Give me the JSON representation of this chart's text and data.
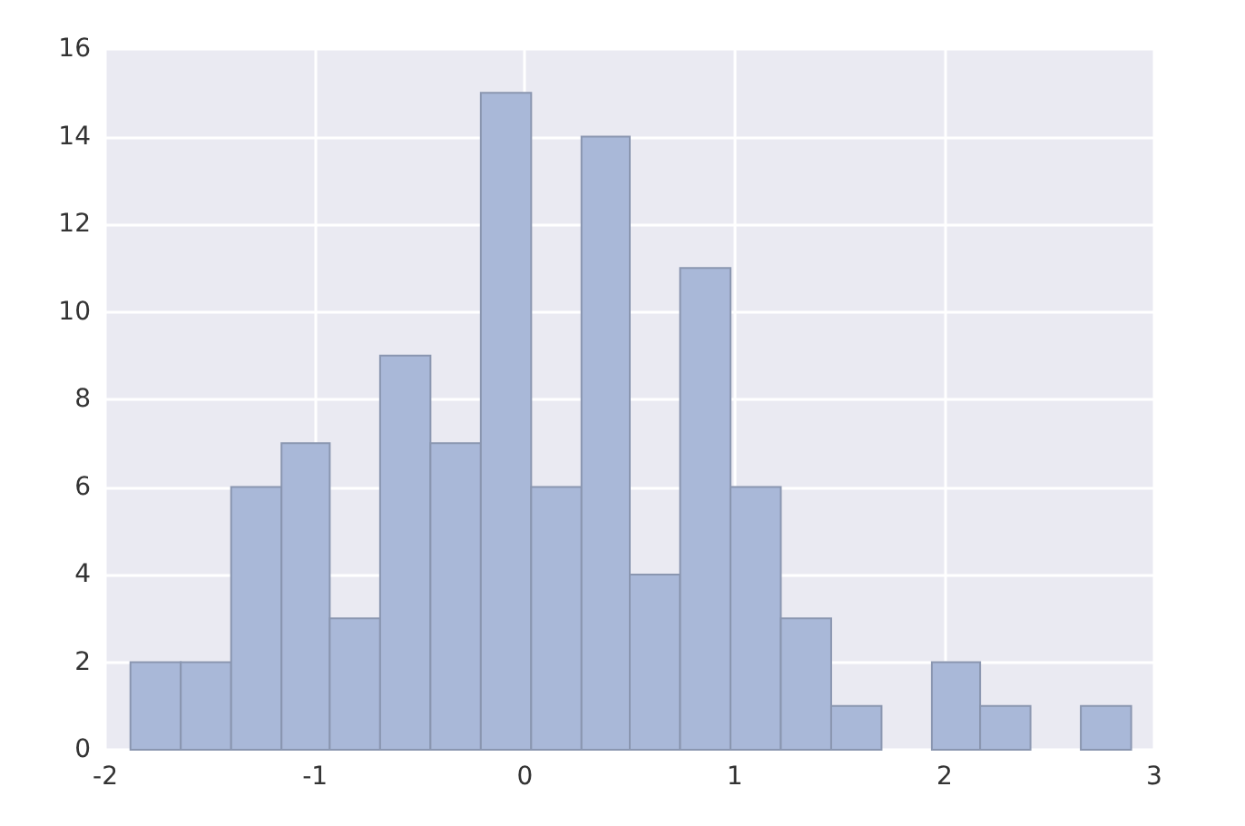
{
  "chart_data": {
    "type": "histogram",
    "bins": [
      -1.88,
      -1.64,
      -1.4,
      -1.16,
      -0.93,
      -0.69,
      -0.45,
      -0.21,
      0.03,
      0.27,
      0.5,
      0.74,
      0.98,
      1.22,
      1.46,
      1.7,
      1.94,
      2.17,
      2.41,
      2.65,
      2.89
    ],
    "values": [
      2,
      2,
      6,
      7,
      3,
      9,
      7,
      15,
      6,
      14,
      4,
      11,
      6,
      3,
      1,
      0,
      2,
      1,
      0,
      1
    ],
    "color": "#a9b8d8",
    "xlim": [
      -2,
      3
    ],
    "xticks": [
      -2,
      -1,
      0,
      1,
      2,
      3
    ],
    "ylim": [
      0,
      16
    ],
    "yticks": [
      0,
      2,
      4,
      6,
      8,
      10,
      12,
      14,
      16
    ],
    "grid": true
  }
}
